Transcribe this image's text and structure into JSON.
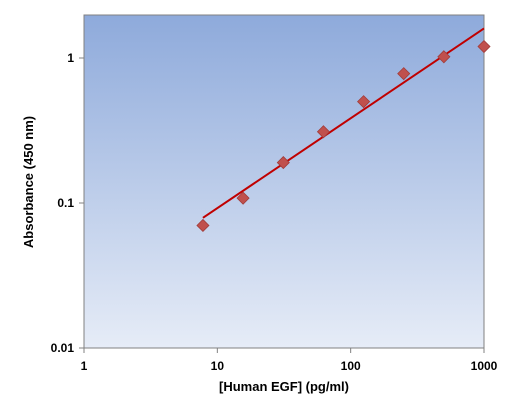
{
  "chart_data": {
    "type": "scatter",
    "title": "",
    "xlabel": "[Human EGF] (pg/ml)",
    "ylabel": "Absorbance (450 nm)",
    "xscale": "log",
    "yscale": "log",
    "xlim": [
      1,
      1000
    ],
    "ylim": [
      0.01,
      2
    ],
    "x_ticks": [
      1,
      10,
      100,
      1000
    ],
    "x_tick_labels": [
      "1",
      "10",
      "100",
      "1000"
    ],
    "y_ticks": [
      0.01,
      0.1,
      1
    ],
    "y_tick_labels": [
      "0.01",
      "0.1",
      "1"
    ],
    "grid": false,
    "legend": "none",
    "series": [
      {
        "kind": "points",
        "marker": "diamond",
        "color": "#c0504d",
        "x": [
          7.8,
          15.6,
          31.25,
          62.5,
          125,
          250,
          500,
          1000
        ],
        "y": [
          0.07,
          0.108,
          0.19,
          0.31,
          0.5,
          0.78,
          1.02,
          1.2
        ]
      },
      {
        "kind": "fit-line",
        "color": "#c00000",
        "x": [
          7.8,
          1000
        ],
        "y": [
          0.079,
          1.6
        ]
      }
    ],
    "background_gradient": [
      "#8eaadb",
      "#e6ecf7"
    ]
  }
}
